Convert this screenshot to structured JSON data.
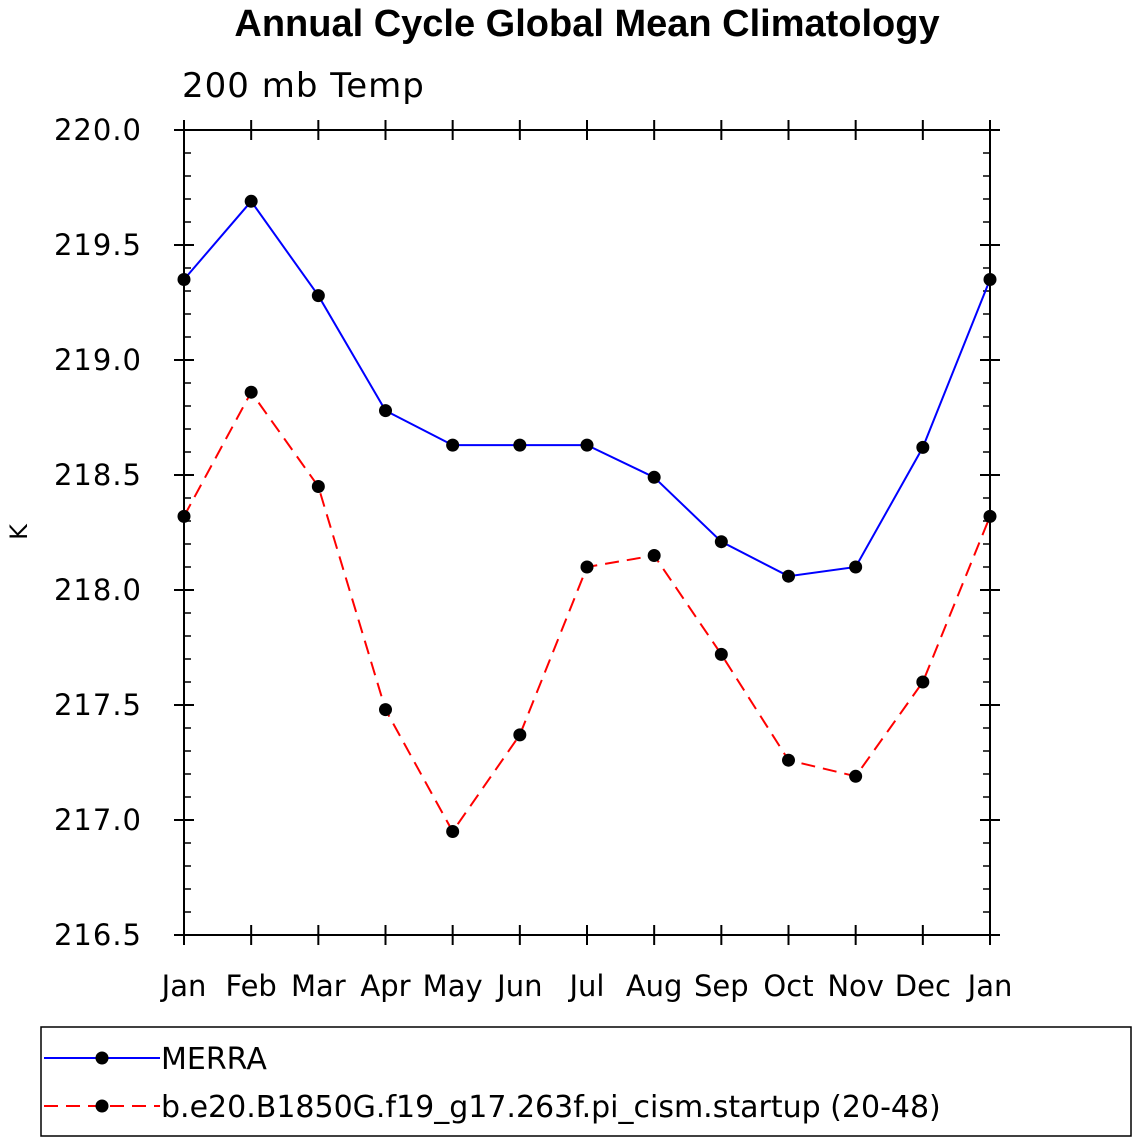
{
  "chart_data": {
    "type": "line",
    "title": "Annual Cycle Global Mean Climatology",
    "subtitle": "200 mb Temp",
    "xlabel": "",
    "ylabel": "K",
    "categories": [
      "Jan",
      "Feb",
      "Mar",
      "Apr",
      "May",
      "Jun",
      "Jul",
      "Aug",
      "Sep",
      "Oct",
      "Nov",
      "Dec",
      "Jan"
    ],
    "ylim": [
      216.5,
      220.0
    ],
    "yticks": [
      216.5,
      217.0,
      217.5,
      218.0,
      218.5,
      219.0,
      219.5,
      220.0
    ],
    "ytick_labels": [
      "216.5",
      "217.0",
      "217.5",
      "218.0",
      "218.5",
      "219.0",
      "219.5",
      "220.0"
    ],
    "grid": false,
    "legend_position": "bottom",
    "series": [
      {
        "name": "MERRA",
        "color": "#0000ff",
        "style": "solid",
        "marker": "circle",
        "values": [
          219.35,
          219.69,
          219.28,
          218.78,
          218.63,
          218.63,
          218.63,
          218.49,
          218.21,
          218.06,
          218.1,
          218.62,
          219.35
        ]
      },
      {
        "name": "b.e20.B1850G.f19_g17.263f.pi_cism.startup (20-48)",
        "color": "#ff0000",
        "style": "dashed",
        "marker": "circle",
        "values": [
          218.32,
          218.86,
          218.45,
          217.48,
          216.95,
          217.37,
          218.1,
          218.15,
          217.72,
          217.26,
          217.19,
          217.6,
          218.32
        ]
      }
    ]
  }
}
